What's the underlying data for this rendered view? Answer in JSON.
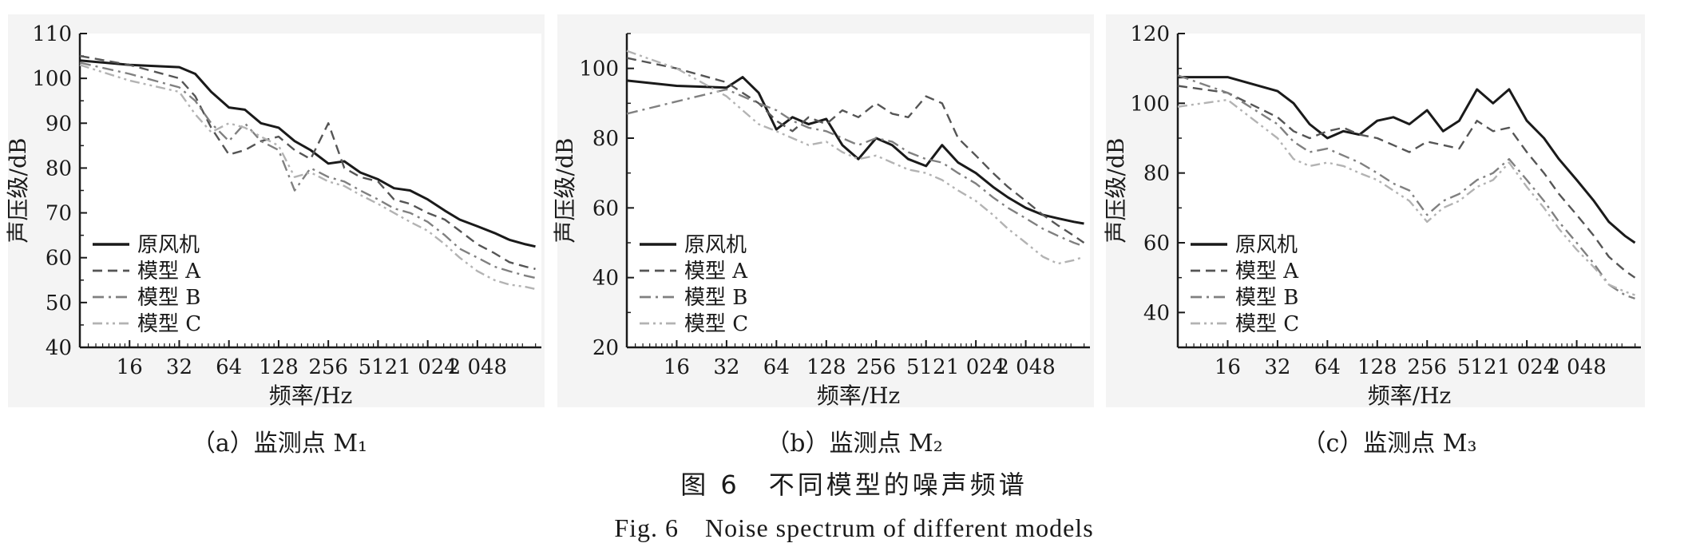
{
  "figure_caption_cn": "图 6　不同模型的噪声频谱",
  "figure_caption_en": "Fig. 6　Noise spectrum of different models",
  "colors": {
    "原风机": "#1a1a1a",
    "模型 A": "#555555",
    "模型 B": "#808080",
    "模型 C": "#b3b3b3"
  },
  "chart_data": [
    {
      "type": "line",
      "subcaption": "（a）监测点 M₁",
      "xlabel": "频率/Hz",
      "ylabel": "声压级/dB",
      "x_scale": "log2",
      "x_range": [
        8,
        5000
      ],
      "x_ticks": [
        16,
        32,
        64,
        128,
        256,
        512,
        1024,
        2048
      ],
      "x_tick_labels": [
        "16",
        "32",
        "64",
        "128",
        "256",
        "512",
        "1 024",
        "2 048"
      ],
      "ylim": [
        40,
        110
      ],
      "y_ticks": [
        40,
        50,
        60,
        70,
        80,
        90,
        100,
        110
      ],
      "legend_position": "bottom-left",
      "series": [
        {
          "name": "原风机",
          "style": "solid",
          "x": [
            8,
            16,
            32,
            40,
            50,
            64,
            80,
            100,
            128,
            160,
            200,
            256,
            320,
            400,
            512,
            640,
            800,
            1024,
            1300,
            1600,
            2048,
            2600,
            3200,
            4000,
            4600
          ],
          "y": [
            104,
            103,
            102.5,
            101,
            97,
            93.5,
            93,
            90,
            89,
            86,
            84,
            81,
            81.5,
            79,
            77.5,
            75.5,
            75,
            73,
            70.5,
            68.5,
            67,
            65.5,
            64,
            63,
            62.5
          ]
        },
        {
          "name": "模型 A",
          "style": "dash",
          "x": [
            8,
            16,
            32,
            40,
            50,
            64,
            80,
            100,
            128,
            160,
            200,
            256,
            320,
            400,
            512,
            640,
            800,
            1024,
            1300,
            1600,
            2048,
            2600,
            3200,
            4000,
            4600
          ],
          "y": [
            105,
            103,
            100,
            96,
            89,
            83,
            84,
            86,
            87,
            84,
            82,
            90,
            80,
            78,
            77,
            73,
            72,
            70,
            68.5,
            66,
            63,
            61,
            59,
            58,
            57.5
          ]
        },
        {
          "name": "模型 B",
          "style": "dashdot",
          "x": [
            8,
            16,
            32,
            40,
            50,
            64,
            80,
            100,
            128,
            160,
            200,
            256,
            320,
            400,
            512,
            640,
            800,
            1024,
            1300,
            1600,
            2048,
            2600,
            3200,
            4000,
            4600
          ],
          "y": [
            103.5,
            101,
            98,
            95,
            90,
            86,
            90,
            86,
            84,
            75,
            80,
            78,
            77,
            75,
            73,
            71,
            70,
            68,
            65,
            62,
            60,
            58,
            57,
            56,
            55.5
          ]
        },
        {
          "name": "模型 C",
          "style": "dashdotdot",
          "x": [
            8,
            16,
            32,
            40,
            50,
            64,
            80,
            100,
            128,
            160,
            200,
            256,
            320,
            400,
            512,
            640,
            800,
            1024,
            1300,
            1600,
            2048,
            2600,
            3200,
            4000,
            4600
          ],
          "y": [
            103,
            99.5,
            97,
            92,
            88,
            90,
            89,
            87,
            85,
            78,
            79,
            77,
            76,
            74,
            72,
            70,
            68,
            66,
            63,
            60,
            57,
            55,
            54,
            53.5,
            53
          ]
        }
      ]
    },
    {
      "type": "line",
      "subcaption": "（b）监测点 M₂",
      "xlabel": "频率/Hz",
      "ylabel": "声压级/dB",
      "x_scale": "log2",
      "x_range": [
        8,
        5000
      ],
      "x_ticks": [
        16,
        32,
        64,
        128,
        256,
        512,
        1024,
        2048
      ],
      "x_tick_labels": [
        "16",
        "32",
        "64",
        "128",
        "256",
        "512",
        "1 024",
        "2 048"
      ],
      "ylim": [
        20,
        110
      ],
      "y_ticks": [
        20,
        40,
        60,
        80,
        100
      ],
      "legend_position": "bottom-left",
      "series": [
        {
          "name": "原风机",
          "style": "solid",
          "x": [
            8,
            16,
            32,
            40,
            50,
            64,
            80,
            100,
            128,
            160,
            200,
            256,
            320,
            400,
            512,
            640,
            800,
            1024,
            1300,
            1600,
            2048,
            2600,
            3200,
            4000,
            4600
          ],
          "y": [
            96.5,
            95,
            94.5,
            97.5,
            93,
            82.5,
            86,
            84,
            85.5,
            78,
            74,
            80,
            78,
            74,
            72,
            78,
            73,
            70,
            66,
            63,
            60,
            58,
            57,
            56,
            55.5
          ]
        },
        {
          "name": "模型 A",
          "style": "dash",
          "x": [
            8,
            16,
            32,
            40,
            50,
            64,
            80,
            100,
            128,
            160,
            200,
            256,
            320,
            400,
            512,
            640,
            800,
            1024,
            1300,
            1600,
            2048,
            2600,
            3200,
            4000,
            4600
          ],
          "y": [
            103,
            100,
            96,
            93,
            90,
            85,
            82,
            86,
            84,
            88,
            86,
            90,
            87,
            86,
            92,
            90,
            80,
            75,
            70,
            66,
            62,
            58,
            55,
            52,
            50
          ]
        },
        {
          "name": "模型 B",
          "style": "dashdot",
          "x": [
            8,
            16,
            32,
            40,
            50,
            64,
            80,
            100,
            128,
            160,
            200,
            256,
            320,
            400,
            512,
            640,
            800,
            1024,
            1300,
            1600,
            2048,
            2600,
            3200,
            4000,
            4600
          ],
          "y": [
            87,
            90.5,
            94,
            92,
            90,
            88,
            85,
            83,
            82,
            80,
            78,
            80,
            79,
            76,
            74,
            73,
            70,
            67,
            63,
            60,
            57,
            54,
            52,
            50,
            49
          ]
        },
        {
          "name": "模型 C",
          "style": "dashdotdot",
          "x": [
            8,
            16,
            32,
            40,
            50,
            64,
            80,
            100,
            128,
            160,
            200,
            256,
            320,
            400,
            512,
            640,
            800,
            1024,
            1300,
            1600,
            2048,
            2600,
            3200,
            4000,
            4600
          ],
          "y": [
            105,
            100,
            92,
            88,
            84,
            82,
            80,
            78,
            79,
            76,
            74,
            75,
            73,
            71,
            70,
            68,
            65,
            62,
            58,
            54,
            50,
            46,
            44,
            45,
            46
          ]
        }
      ]
    },
    {
      "type": "line",
      "subcaption": "（c）监测点 M₃",
      "xlabel": "频率/Hz",
      "ylabel": "声压级/dB",
      "x_scale": "log2",
      "x_range": [
        8,
        5000
      ],
      "x_ticks": [
        16,
        32,
        64,
        128,
        256,
        512,
        1024,
        2048
      ],
      "x_tick_labels": [
        "16",
        "32",
        "64",
        "128",
        "256",
        "512",
        "1 024",
        "2 048"
      ],
      "ylim": [
        30,
        120
      ],
      "y_ticks": [
        40,
        60,
        80,
        100,
        120
      ],
      "legend_position": "bottom-left",
      "series": [
        {
          "name": "原风机",
          "style": "solid",
          "x": [
            8,
            16,
            32,
            40,
            50,
            64,
            80,
            100,
            128,
            160,
            200,
            256,
            320,
            400,
            512,
            640,
            800,
            1024,
            1300,
            1600,
            2048,
            2600,
            3200,
            4000,
            4600
          ],
          "y": [
            107.5,
            107.5,
            103.5,
            100,
            94,
            90,
            92,
            91,
            95,
            96,
            94,
            98,
            92,
            95,
            104,
            100,
            104,
            95,
            90,
            84,
            78,
            72,
            66,
            62,
            60
          ]
        },
        {
          "name": "模型 A",
          "style": "dash",
          "x": [
            8,
            16,
            32,
            40,
            50,
            64,
            80,
            100,
            128,
            160,
            200,
            256,
            320,
            400,
            512,
            640,
            800,
            1024,
            1300,
            1600,
            2048,
            2600,
            3200,
            4000,
            4600
          ],
          "y": [
            105,
            103,
            96,
            92,
            90,
            92,
            93,
            91,
            90,
            88,
            86,
            89,
            88,
            87,
            95,
            92,
            93,
            86,
            80,
            74,
            68,
            62,
            56,
            52,
            50
          ]
        },
        {
          "name": "模型 B",
          "style": "dashdot",
          "x": [
            8,
            16,
            32,
            40,
            50,
            64,
            80,
            100,
            128,
            160,
            200,
            256,
            320,
            400,
            512,
            640,
            800,
            1024,
            1300,
            1600,
            2048,
            2600,
            3200,
            4000,
            4600
          ],
          "y": [
            108,
            103,
            94,
            89,
            86,
            87,
            85,
            83,
            80,
            77,
            75,
            68,
            72,
            74,
            78,
            80,
            84,
            78,
            72,
            66,
            60,
            54,
            48,
            45,
            44
          ]
        },
        {
          "name": "模型 C",
          "style": "dashdotdot",
          "x": [
            8,
            16,
            32,
            40,
            50,
            64,
            80,
            100,
            128,
            160,
            200,
            256,
            320,
            400,
            512,
            640,
            800,
            1024,
            1300,
            1600,
            2048,
            2600,
            3200,
            4000,
            4600
          ],
          "y": [
            99,
            101,
            90,
            84,
            82,
            83,
            82,
            80,
            78,
            75,
            72,
            66,
            70,
            72,
            76,
            78,
            83,
            76,
            70,
            64,
            58,
            53,
            48,
            46,
            45
          ]
        }
      ]
    }
  ]
}
